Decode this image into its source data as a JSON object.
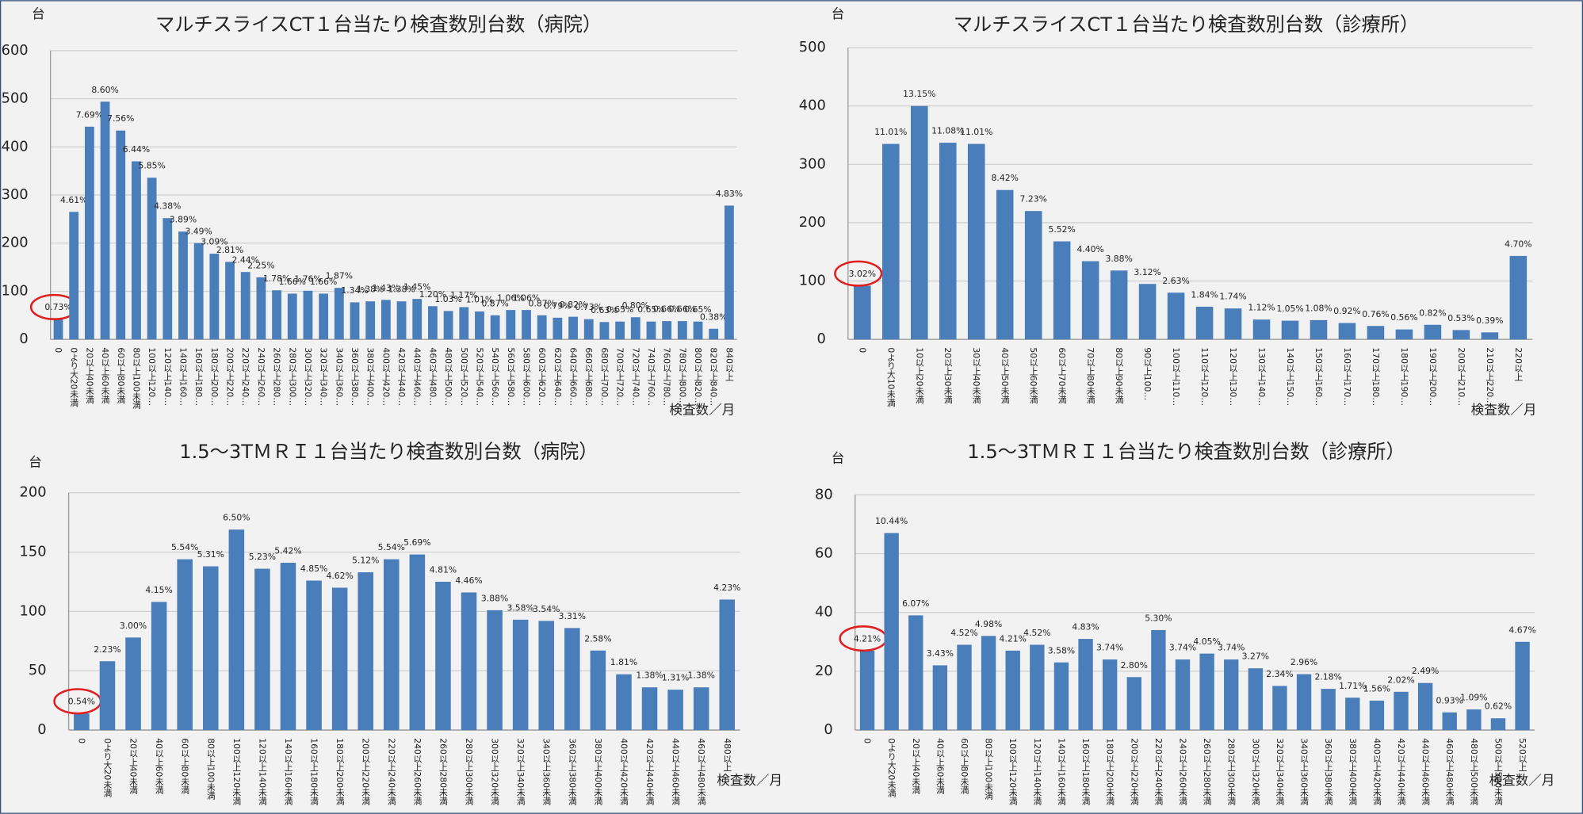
{
  "chart_data": [
    {
      "type": "bar",
      "title": "マルチスライスCT１台当たり検査数別台数（病院）",
      "y_label": "台",
      "x_label": "検査数／月",
      "categories": [
        "0",
        "0より大20未満",
        "20以上40未満",
        "40以上60未満",
        "60以上80未満",
        "80以上100未満",
        "100以上120…",
        "120以上140…",
        "140以上160…",
        "160以上180…",
        "180以上200…",
        "200以上220…",
        "220以上240…",
        "240以上260…",
        "260以上280…",
        "280以上300…",
        "300以上320…",
        "320以上340…",
        "340以上360…",
        "360以上380…",
        "380以上400…",
        "400以上420…",
        "420以上440…",
        "440以上460…",
        "460以上480…",
        "480以上500…",
        "500以上520…",
        "520以上540…",
        "540以上560…",
        "560以上580…",
        "580以上600…",
        "600以上620…",
        "620以上640…",
        "640以上660…",
        "660以上680…",
        "680以上700…",
        "700以上720…",
        "720以上740…",
        "740以上760…",
        "760以上780…",
        "780以上800…",
        "800以上820…",
        "820以上840…",
        "840以上"
      ],
      "values": [
        42,
        265,
        442,
        494,
        434,
        370,
        336,
        252,
        224,
        200,
        178,
        161,
        140,
        129,
        102,
        95,
        101,
        95,
        107,
        77,
        79,
        82,
        79,
        84,
        69,
        59,
        67,
        58,
        50,
        61,
        61,
        50,
        45,
        47,
        42,
        36,
        37,
        46,
        37,
        38,
        38,
        37,
        22,
        278
      ],
      "share_labels": [
        "0.73%",
        "4.61%",
        "7.69%",
        "8.60%",
        "7.56%",
        "6.44%",
        "5.85%",
        "4.38%",
        "3.89%",
        "3.49%",
        "3.09%",
        "2.81%",
        "2.44%",
        "2.25%",
        "1.78%",
        "1.66%",
        "1.76%",
        "1.66%",
        "1.87%",
        "1.34%",
        "1.38%",
        "1.43%",
        "1.38%",
        "1.45%",
        "1.20%",
        "1.03%",
        "1.17%",
        "1.01%",
        "0.87%",
        "1.06%",
        "1.06%",
        "0.87%",
        "0.79%",
        "0.82%",
        "0.73%",
        "0.63%",
        "0.65%",
        "0.80%",
        "0.65%",
        "0.66%",
        "0.66%",
        "0.65%",
        "0.38%",
        "4.83%"
      ],
      "color": "#4a7ebb",
      "ylim": [
        0,
        600
      ],
      "yticks": [
        0,
        100,
        200,
        300,
        400,
        500,
        600
      ],
      "grid": true
    },
    {
      "type": "bar",
      "title": "マルチスライスCT１台当たり検査数別台数（診療所）",
      "y_label": "台",
      "x_label": "検査数／月",
      "categories": [
        "0",
        "0より大10未満",
        "10以上20未満",
        "20以上30未満",
        "30以上40未満",
        "40以上50未満",
        "50以上60未満",
        "60以上70未満",
        "70以上80未満",
        "80以上90未満",
        "90以上100…",
        "100以上110…",
        "110以上120…",
        "120以上130…",
        "130以上140…",
        "140以上150…",
        "150以上160…",
        "160以上170…",
        "170以上180…",
        "180以上190…",
        "190以上200…",
        "200以上210…",
        "210以上220…",
        "220以上"
      ],
      "values": [
        92,
        335,
        400,
        337,
        335,
        256,
        220,
        168,
        134,
        118,
        95,
        80,
        56,
        53,
        34,
        32,
        33,
        28,
        23,
        17,
        25,
        16,
        12,
        143
      ],
      "share_labels": [
        "3.02%",
        "11.01%",
        "13.15%",
        "11.08%",
        "11.01%",
        "8.42%",
        "7.23%",
        "5.52%",
        "4.40%",
        "3.88%",
        "3.12%",
        "2.63%",
        "1.84%",
        "1.74%",
        "1.12%",
        "1.05%",
        "1.08%",
        "0.92%",
        "0.76%",
        "0.56%",
        "0.82%",
        "0.53%",
        "0.39%",
        "4.70%"
      ],
      "color": "#4a7ebb",
      "ylim": [
        0,
        500
      ],
      "yticks": [
        0,
        100,
        200,
        300,
        400,
        500
      ],
      "grid": true
    },
    {
      "type": "bar",
      "title": "1.5～3TＭＲＩ１台当たり検査数別台数（病院）",
      "y_label": "台",
      "x_label": "検査数／月",
      "categories": [
        "0",
        "0より大20未満",
        "20以上40未満",
        "40以上60未満",
        "60以上80未満",
        "80以上100未満",
        "100以上120未満",
        "120以上140未満",
        "140以上160未満",
        "160以上180未満",
        "180以上200未満",
        "200以上220未満",
        "220以上240未満",
        "240以上260未満",
        "260以上280未満",
        "280以上300未満",
        "300以上320未満",
        "320以上340未満",
        "340以上360未満",
        "360以上380未満",
        "380以上400未満",
        "400以上420未満",
        "420以上440未満",
        "440以上460未満",
        "460以上480未満",
        "480以上"
      ],
      "values": [
        14,
        58,
        78,
        108,
        144,
        138,
        169,
        136,
        141,
        126,
        120,
        133,
        144,
        148,
        125,
        116,
        101,
        93,
        92,
        86,
        67,
        47,
        36,
        34,
        36,
        110
      ],
      "share_labels": [
        "0.54%",
        "2.23%",
        "3.00%",
        "4.15%",
        "5.54%",
        "5.31%",
        "6.50%",
        "5.23%",
        "5.42%",
        "4.85%",
        "4.62%",
        "5.12%",
        "5.54%",
        "5.69%",
        "4.81%",
        "4.46%",
        "3.88%",
        "3.58%",
        "3.54%",
        "3.31%",
        "2.58%",
        "1.81%",
        "1.38%",
        "1.31%",
        "1.38%",
        "4.23%"
      ],
      "color": "#4a7ebb",
      "ylim": [
        0,
        200
      ],
      "yticks": [
        0,
        50,
        100,
        150,
        200
      ],
      "grid": true
    },
    {
      "type": "bar",
      "title": "1.5～3TＭＲＩ１台当たり検査数別台数（診療所）",
      "y_label": "台",
      "x_label": "検査数／月",
      "categories": [
        "0",
        "0より大20未満",
        "20以上40未満",
        "40以上60未満",
        "60以上80未満",
        "80以上100未満",
        "100以上120未満",
        "120以上140未満",
        "140以上160未満",
        "160以上180未満",
        "180以上200未満",
        "200以上220未満",
        "220以上240未満",
        "240以上260未満",
        "260以上280未満",
        "280以上300未満",
        "300以上320未満",
        "320以上340未満",
        "340以上360未満",
        "360以上380未満",
        "380以上400未満",
        "400以上420未満",
        "420以上440未満",
        "440以上460未満",
        "460以上480未満",
        "480以上500未満",
        "500以上520未満",
        "520以上"
      ],
      "values": [
        27,
        67,
        39,
        22,
        29,
        32,
        27,
        29,
        23,
        31,
        24,
        18,
        34,
        24,
        26,
        24,
        21,
        15,
        19,
        14,
        11,
        10,
        13,
        16,
        6,
        7,
        4,
        30
      ],
      "share_labels": [
        "4.21%",
        "10.44%",
        "6.07%",
        "3.43%",
        "4.52%",
        "4.98%",
        "4.21%",
        "4.52%",
        "3.58%",
        "4.83%",
        "3.74%",
        "2.80%",
        "5.30%",
        "3.74%",
        "4.05%",
        "3.74%",
        "3.27%",
        "2.34%",
        "2.96%",
        "2.18%",
        "1.71%",
        "1.56%",
        "2.02%",
        "2.49%",
        "0.93%",
        "1.09%",
        "0.62%",
        "4.67%"
      ],
      "color": "#4a7ebb",
      "ylim": [
        0,
        80
      ],
      "yticks": [
        0,
        20,
        40,
        60,
        80
      ],
      "grid": true
    }
  ]
}
